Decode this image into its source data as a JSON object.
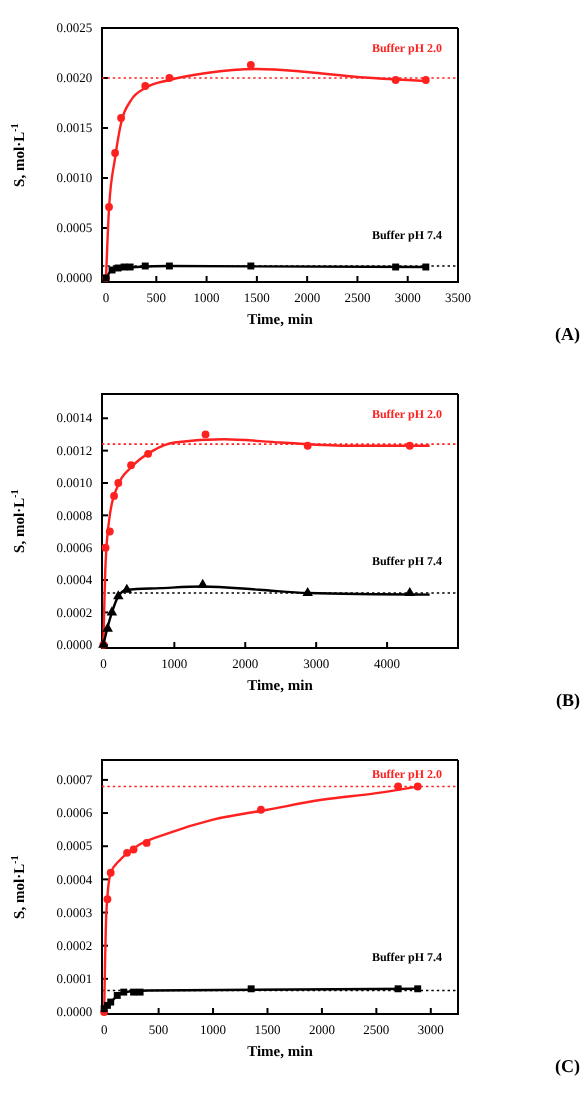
{
  "chart_data": [
    {
      "type": "scatter",
      "xlabel": "Time, min",
      "ylabel": "S, mol·L$^{-1}$",
      "annotations": [
        "(A)"
      ],
      "legend": false,
      "xlim": [
        -40,
        3500
      ],
      "xticks": [
        0,
        500,
        1000,
        1500,
        2000,
        2500,
        3000,
        3500
      ],
      "ylim": [
        -4e-05,
        0.0025
      ],
      "yticks": [
        {
          "value": 0,
          "label": "0.0000"
        },
        {
          "value": 0.0005,
          "label": "0.0005"
        },
        {
          "value": 0.001,
          "label": "0.0010"
        },
        {
          "value": 0.0015,
          "label": "0.0015"
        },
        {
          "value": 0.002,
          "label": "0.0020"
        },
        {
          "value": 0.0025,
          "label": "0.0025"
        }
      ],
      "series": [
        {
          "type": "line",
          "color": "#ff2020",
          "x": [
            0,
            30,
            90,
            150,
            250,
            390,
            630,
            1000,
            1500,
            2000,
            2500,
            3000,
            3180
          ],
          "values": [
            0,
            0.0007,
            0.0012,
            0.00155,
            0.00178,
            0.0019,
            0.00198,
            0.00205,
            0.00209,
            0.00206,
            0.00201,
            0.00198,
            0.00197
          ]
        },
        {
          "type": "line",
          "color": "#000000",
          "x": [
            0,
            60,
            150,
            300,
            630,
            3180
          ],
          "values": [
            0,
            8e-05,
            0.0001,
            0.00011,
            0.00012,
            0.00011
          ]
        },
        {
          "name": "Buffer pH 2.0",
          "color": "#ff2020",
          "marker": "circle",
          "x": [
            0,
            30,
            90,
            150,
            390,
            630,
            1440,
            2880,
            3180
          ],
          "values": [
            0,
            0.00071,
            0.00125,
            0.0016,
            0.00192,
            0.002,
            0.00213,
            0.00198,
            0.00198
          ]
        },
        {
          "name": "Buffer pH 7.4",
          "color": "#000000",
          "marker": "square",
          "x": [
            0,
            60,
            120,
            180,
            240,
            390,
            630,
            1440,
            2880,
            3180
          ],
          "values": [
            0,
            8e-05,
            0.0001,
            0.00011,
            0.00011,
            0.00012,
            0.00012,
            0.00012,
            0.00011,
            0.00011
          ]
        }
      ],
      "ref_lines": [
        {
          "axis": "y",
          "value": 0.002,
          "color": "#ff2020",
          "line_style": "dotted"
        },
        {
          "axis": "y",
          "value": 0.00012,
          "color": "#000000",
          "line_style": "dotted"
        }
      ]
    },
    {
      "type": "scatter",
      "xlabel": "Time, min",
      "ylabel": "S, mol·L$^{-1}$",
      "annotations": [
        "(B)"
      ],
      "legend": false,
      "xlim": [
        -20,
        5000
      ],
      "xticks": [
        0,
        1000,
        2000,
        3000,
        4000
      ],
      "ylim": [
        -2e-05,
        0.00155
      ],
      "yticks": [
        {
          "value": 0,
          "label": "0.0000"
        },
        {
          "value": 0.0002,
          "label": "0.0002"
        },
        {
          "value": 0.0004,
          "label": "0.0004"
        },
        {
          "value": 0.0006,
          "label": "0.0006"
        },
        {
          "value": 0.0008,
          "label": "0.0008"
        },
        {
          "value": 0.001,
          "label": "0.0010"
        },
        {
          "value": 0.0012,
          "label": "0.0012"
        },
        {
          "value": 0.0014,
          "label": "0.0014"
        }
      ],
      "series": [
        {
          "type": "line",
          "color": "#ff2020",
          "x": [
            0,
            30,
            90,
            200,
            400,
            700,
            1000,
            1700,
            2500,
            3500,
            4600
          ],
          "values": [
            0,
            0.0005,
            0.0008,
            0.00098,
            0.0011,
            0.0012,
            0.00125,
            0.00127,
            0.00125,
            0.00123,
            0.00123
          ]
        },
        {
          "type": "line",
          "color": "#000000",
          "x": [
            0,
            60,
            120,
            210,
            330,
            800,
            1400,
            2200,
            2880,
            4600
          ],
          "values": [
            0,
            0.00011,
            0.0002,
            0.0003,
            0.00034,
            0.00035,
            0.00036,
            0.00034,
            0.00032,
            0.00031
          ]
        },
        {
          "name": "Buffer pH 2.0",
          "color": "#ff2020",
          "marker": "circle",
          "x": [
            0,
            30,
            90,
            150,
            210,
            390,
            630,
            1440,
            2880,
            4320
          ],
          "values": [
            0,
            0.0006,
            0.0007,
            0.00092,
            0.001,
            0.00111,
            0.00118,
            0.0013,
            0.00123,
            0.00123
          ]
        },
        {
          "name": "Buffer pH 7.4",
          "color": "#000000",
          "marker": "triangle",
          "x": [
            0,
            60,
            120,
            210,
            330,
            1400,
            2880,
            4320
          ],
          "values": [
            0,
            0.0001,
            0.0002,
            0.0003,
            0.00034,
            0.00037,
            0.00032,
            0.00032
          ]
        }
      ],
      "ref_lines": [
        {
          "axis": "y",
          "value": 0.00124,
          "color": "#ff2020",
          "line_style": "dotted"
        },
        {
          "axis": "y",
          "value": 0.00032,
          "color": "#000000",
          "line_style": "dotted"
        }
      ]
    },
    {
      "type": "scatter",
      "xlabel": "Time, min",
      "ylabel": "S, mol·L$^{-1}$",
      "annotations": [
        "(C)"
      ],
      "legend": false,
      "xlim": [
        -20,
        3250
      ],
      "xticks": [
        0,
        500,
        1000,
        1500,
        2000,
        2500,
        3000
      ],
      "ylim": [
        -6e-06,
        0.00076
      ],
      "yticks": [
        {
          "value": 0,
          "label": "0.0000"
        },
        {
          "value": 0.0001,
          "label": "0.0001"
        },
        {
          "value": 0.0002,
          "label": "0.0002"
        },
        {
          "value": 0.0003,
          "label": "0.0003"
        },
        {
          "value": 0.0004,
          "label": "0.0004"
        },
        {
          "value": 0.0005,
          "label": "0.0005"
        },
        {
          "value": 0.0006,
          "label": "0.0006"
        },
        {
          "value": 0.0007,
          "label": "0.0007"
        }
      ],
      "series": [
        {
          "type": "line",
          "color": "#ff2020",
          "x": [
            0,
            20,
            60,
            150,
            300,
            600,
            1000,
            1500,
            2000,
            2500,
            2880
          ],
          "values": [
            0,
            0.0003,
            0.00042,
            0.00046,
            0.0005,
            0.00054,
            0.00058,
            0.00061,
            0.00064,
            0.00066,
            0.00068
          ]
        },
        {
          "type": "line",
          "color": "#000000",
          "x": [
            0,
            60,
            180,
            400,
            2880
          ],
          "values": [
            1e-05,
            3e-05,
            6e-05,
            6.5e-05,
            7e-05
          ]
        },
        {
          "name": "Buffer pH 2.0",
          "color": "#ff2020",
          "marker": "circle",
          "x": [
            0,
            30,
            60,
            210,
            270,
            390,
            1440,
            2700,
            2880
          ],
          "values": [
            0,
            0.00034,
            0.00042,
            0.00048,
            0.00049,
            0.00051,
            0.00061,
            0.00068,
            0.00068
          ]
        },
        {
          "name": "Buffer pH 7.4",
          "color": "#000000",
          "marker": "square",
          "x": [
            0,
            30,
            60,
            120,
            180,
            270,
            330,
            1350,
            2700,
            2880
          ],
          "values": [
            1e-05,
            2e-05,
            3e-05,
            5e-05,
            6e-05,
            6e-05,
            6e-05,
            7e-05,
            7e-05,
            7e-05
          ]
        }
      ],
      "ref_lines": [
        {
          "axis": "y",
          "value": 0.00068,
          "color": "#ff2020",
          "line_style": "dotted"
        },
        {
          "axis": "y",
          "value": 6.5e-05,
          "color": "#000000",
          "line_style": "dotted"
        }
      ]
    }
  ]
}
